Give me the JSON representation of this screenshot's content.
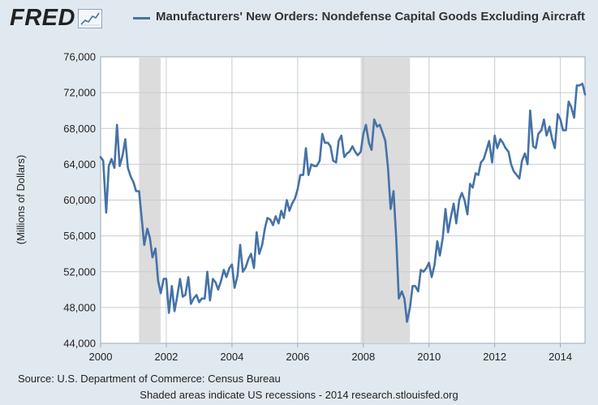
{
  "header": {
    "logo_text": "FRED",
    "logo_icon": "fred-chart-badge-icon"
  },
  "chart_data": {
    "type": "line",
    "title": "Manufacturers' New Orders: Nondefense Capital Goods Excluding Aircraft",
    "series_name": "Manufacturers' New Orders: Nondefense Capital Goods Excluding Aircraft",
    "ylabel": "(Millions of Dollars)",
    "xlabel": "",
    "xlim": [
      2000.0,
      2014.75
    ],
    "ylim": [
      44000,
      76000
    ],
    "grid": true,
    "legend_position": "top",
    "x_ticks": [
      {
        "value": 2000,
        "label": "2000"
      },
      {
        "value": 2002,
        "label": "2002"
      },
      {
        "value": 2004,
        "label": "2004"
      },
      {
        "value": 2006,
        "label": "2006"
      },
      {
        "value": 2008,
        "label": "2008"
      },
      {
        "value": 2010,
        "label": "2010"
      },
      {
        "value": 2012,
        "label": "2012"
      },
      {
        "value": 2014,
        "label": "2014"
      }
    ],
    "y_ticks": [
      {
        "value": 44000,
        "label": "44,000"
      },
      {
        "value": 48000,
        "label": "48,000"
      },
      {
        "value": 52000,
        "label": "52,000"
      },
      {
        "value": 56000,
        "label": "56,000"
      },
      {
        "value": 60000,
        "label": "60,000"
      },
      {
        "value": 64000,
        "label": "64,000"
      },
      {
        "value": 68000,
        "label": "68,000"
      },
      {
        "value": 72000,
        "label": "72,000"
      },
      {
        "value": 76000,
        "label": "76,000"
      }
    ],
    "recessions": [
      {
        "start": 2001.17,
        "end": 2001.83
      },
      {
        "start": 2007.92,
        "end": 2009.42
      }
    ],
    "line_color": "#4572a7",
    "points": [
      [
        2000.0,
        64800
      ],
      [
        2000.08,
        64400
      ],
      [
        2000.17,
        58600
      ],
      [
        2000.25,
        63800
      ],
      [
        2000.33,
        64600
      ],
      [
        2000.42,
        63600
      ],
      [
        2000.5,
        68400
      ],
      [
        2000.58,
        63800
      ],
      [
        2000.67,
        65000
      ],
      [
        2000.75,
        66800
      ],
      [
        2000.83,
        63600
      ],
      [
        2000.92,
        62600
      ],
      [
        2001.0,
        62000
      ],
      [
        2001.08,
        61000
      ],
      [
        2001.17,
        61000
      ],
      [
        2001.25,
        58000
      ],
      [
        2001.33,
        55000
      ],
      [
        2001.42,
        56800
      ],
      [
        2001.5,
        55800
      ],
      [
        2001.58,
        53600
      ],
      [
        2001.67,
        54600
      ],
      [
        2001.75,
        51000
      ],
      [
        2001.83,
        49600
      ],
      [
        2001.92,
        51200
      ],
      [
        2002.0,
        51200
      ],
      [
        2002.08,
        47400
      ],
      [
        2002.17,
        50400
      ],
      [
        2002.25,
        47600
      ],
      [
        2002.33,
        49200
      ],
      [
        2002.42,
        51200
      ],
      [
        2002.5,
        49200
      ],
      [
        2002.58,
        49400
      ],
      [
        2002.67,
        51400
      ],
      [
        2002.75,
        48400
      ],
      [
        2002.83,
        49000
      ],
      [
        2002.92,
        49400
      ],
      [
        2003.0,
        48600
      ],
      [
        2003.08,
        49000
      ],
      [
        2003.17,
        49000
      ],
      [
        2003.25,
        52000
      ],
      [
        2003.33,
        48800
      ],
      [
        2003.42,
        51200
      ],
      [
        2003.5,
        50800
      ],
      [
        2003.58,
        50000
      ],
      [
        2003.67,
        51000
      ],
      [
        2003.75,
        52200
      ],
      [
        2003.83,
        51400
      ],
      [
        2003.92,
        52400
      ],
      [
        2004.0,
        52800
      ],
      [
        2004.08,
        50200
      ],
      [
        2004.17,
        51600
      ],
      [
        2004.25,
        55000
      ],
      [
        2004.33,
        52000
      ],
      [
        2004.42,
        52500
      ],
      [
        2004.5,
        53400
      ],
      [
        2004.58,
        54000
      ],
      [
        2004.67,
        52400
      ],
      [
        2004.75,
        56400
      ],
      [
        2004.83,
        54000
      ],
      [
        2004.92,
        55000
      ],
      [
        2005.0,
        56800
      ],
      [
        2005.08,
        58000
      ],
      [
        2005.17,
        57800
      ],
      [
        2005.25,
        57200
      ],
      [
        2005.33,
        58200
      ],
      [
        2005.42,
        57400
      ],
      [
        2005.5,
        58800
      ],
      [
        2005.58,
        58000
      ],
      [
        2005.67,
        60000
      ],
      [
        2005.75,
        58800
      ],
      [
        2005.83,
        59600
      ],
      [
        2005.92,
        60200
      ],
      [
        2006.0,
        61200
      ],
      [
        2006.08,
        62800
      ],
      [
        2006.17,
        62800
      ],
      [
        2006.25,
        65800
      ],
      [
        2006.33,
        62800
      ],
      [
        2006.42,
        64000
      ],
      [
        2006.5,
        63800
      ],
      [
        2006.58,
        63800
      ],
      [
        2006.67,
        64400
      ],
      [
        2006.75,
        67400
      ],
      [
        2006.83,
        66400
      ],
      [
        2006.92,
        66400
      ],
      [
        2007.0,
        66000
      ],
      [
        2007.08,
        64400
      ],
      [
        2007.17,
        64200
      ],
      [
        2007.25,
        66600
      ],
      [
        2007.33,
        67200
      ],
      [
        2007.42,
        64800
      ],
      [
        2007.5,
        65200
      ],
      [
        2007.58,
        65400
      ],
      [
        2007.67,
        66000
      ],
      [
        2007.75,
        65400
      ],
      [
        2007.83,
        65000
      ],
      [
        2007.92,
        65400
      ],
      [
        2008.0,
        67400
      ],
      [
        2008.08,
        68400
      ],
      [
        2008.17,
        66400
      ],
      [
        2008.25,
        65600
      ],
      [
        2008.33,
        69000
      ],
      [
        2008.42,
        68200
      ],
      [
        2008.5,
        68400
      ],
      [
        2008.58,
        67600
      ],
      [
        2008.67,
        66600
      ],
      [
        2008.75,
        63600
      ],
      [
        2008.83,
        59000
      ],
      [
        2008.92,
        61000
      ],
      [
        2009.0,
        55800
      ],
      [
        2009.08,
        49000
      ],
      [
        2009.17,
        49800
      ],
      [
        2009.25,
        49000
      ],
      [
        2009.33,
        46400
      ],
      [
        2009.42,
        48000
      ],
      [
        2009.5,
        50400
      ],
      [
        2009.58,
        50400
      ],
      [
        2009.67,
        49800
      ],
      [
        2009.75,
        52200
      ],
      [
        2009.83,
        52000
      ],
      [
        2009.92,
        52400
      ],
      [
        2010.0,
        53000
      ],
      [
        2010.08,
        51400
      ],
      [
        2010.17,
        52800
      ],
      [
        2010.25,
        55400
      ],
      [
        2010.33,
        53800
      ],
      [
        2010.42,
        55800
      ],
      [
        2010.5,
        59000
      ],
      [
        2010.58,
        56400
      ],
      [
        2010.67,
        58200
      ],
      [
        2010.75,
        59600
      ],
      [
        2010.83,
        57400
      ],
      [
        2010.92,
        60000
      ],
      [
        2011.0,
        60800
      ],
      [
        2011.08,
        60000
      ],
      [
        2011.17,
        58400
      ],
      [
        2011.25,
        61800
      ],
      [
        2011.33,
        61400
      ],
      [
        2011.42,
        63000
      ],
      [
        2011.5,
        62800
      ],
      [
        2011.58,
        64200
      ],
      [
        2011.67,
        64600
      ],
      [
        2011.75,
        65600
      ],
      [
        2011.83,
        66600
      ],
      [
        2011.92,
        64200
      ],
      [
        2012.0,
        67200
      ],
      [
        2012.08,
        65800
      ],
      [
        2012.17,
        66800
      ],
      [
        2012.25,
        66400
      ],
      [
        2012.33,
        65800
      ],
      [
        2012.42,
        65400
      ],
      [
        2012.5,
        64000
      ],
      [
        2012.58,
        63200
      ],
      [
        2012.67,
        62800
      ],
      [
        2012.75,
        62400
      ],
      [
        2012.83,
        64400
      ],
      [
        2012.92,
        65200
      ],
      [
        2013.0,
        64000
      ],
      [
        2013.08,
        70000
      ],
      [
        2013.17,
        66000
      ],
      [
        2013.25,
        65800
      ],
      [
        2013.33,
        67400
      ],
      [
        2013.42,
        67800
      ],
      [
        2013.5,
        69000
      ],
      [
        2013.58,
        67200
      ],
      [
        2013.67,
        68200
      ],
      [
        2013.75,
        66800
      ],
      [
        2013.83,
        65800
      ],
      [
        2013.92,
        69600
      ],
      [
        2014.0,
        69000
      ],
      [
        2014.08,
        67800
      ],
      [
        2014.17,
        67800
      ],
      [
        2014.25,
        71000
      ],
      [
        2014.33,
        70400
      ],
      [
        2014.42,
        69200
      ],
      [
        2014.5,
        72800
      ],
      [
        2014.58,
        72800
      ],
      [
        2014.67,
        73000
      ],
      [
        2014.75,
        71800
      ]
    ]
  },
  "footer": {
    "source": "Source: U.S. Department of Commerce: Census Bureau",
    "note": "Shaded areas indicate US recessions - 2014 research.stlouisfed.org"
  }
}
